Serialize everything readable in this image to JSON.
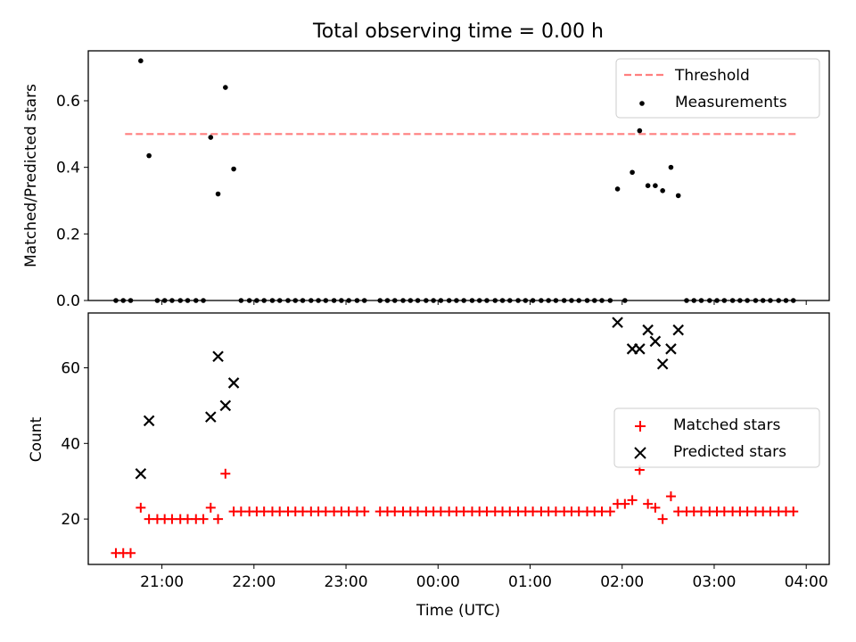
{
  "chart_data": [
    {
      "type": "scatter",
      "title": "Total observing time = 0.00 h",
      "ylabel": "Matched/Predicted stars",
      "xlabel": "",
      "ylim": [
        0,
        0.75
      ],
      "yticks": [
        0.0,
        0.2,
        0.4,
        0.6
      ],
      "ytick_labels": [
        "0.0",
        "0.2",
        "0.4",
        "0.6"
      ],
      "legend_position": "upper right",
      "threshold": {
        "name": "Threshold",
        "value": 0.5,
        "color": "#ff7f7f",
        "style": "dashed",
        "x_range": [
          20.6,
          27.9
        ]
      },
      "series": [
        {
          "name": "Measurements",
          "marker": "dot",
          "color": "#000000",
          "points": [
            [
              20.5,
              0
            ],
            [
              20.58,
              0
            ],
            [
              20.66,
              0
            ],
            [
              20.77,
              0.72
            ],
            [
              20.86,
              0.435
            ],
            [
              20.95,
              0
            ],
            [
              21.03,
              0
            ],
            [
              21.11,
              0
            ],
            [
              21.2,
              0
            ],
            [
              21.28,
              0
            ],
            [
              21.37,
              0
            ],
            [
              21.45,
              0
            ],
            [
              21.53,
              0.49
            ],
            [
              21.61,
              0.32
            ],
            [
              21.69,
              0.64
            ],
            [
              21.78,
              0.395
            ],
            [
              21.86,
              0
            ],
            [
              21.95,
              0
            ],
            [
              22.03,
              0
            ],
            [
              22.11,
              0
            ],
            [
              22.2,
              0
            ],
            [
              22.28,
              0
            ],
            [
              22.37,
              0
            ],
            [
              22.45,
              0
            ],
            [
              22.53,
              0
            ],
            [
              22.62,
              0
            ],
            [
              22.7,
              0
            ],
            [
              22.78,
              0
            ],
            [
              22.87,
              0
            ],
            [
              22.95,
              0
            ],
            [
              23.03,
              0
            ],
            [
              23.12,
              0
            ],
            [
              23.2,
              0
            ],
            [
              23.37,
              0
            ],
            [
              23.45,
              0
            ],
            [
              23.53,
              0
            ],
            [
              23.62,
              0
            ],
            [
              23.7,
              0
            ],
            [
              23.78,
              0
            ],
            [
              23.87,
              0
            ],
            [
              23.95,
              0
            ],
            [
              24.03,
              0
            ],
            [
              24.12,
              0
            ],
            [
              24.2,
              0
            ],
            [
              24.28,
              0
            ],
            [
              24.37,
              0
            ],
            [
              24.45,
              0
            ],
            [
              24.53,
              0
            ],
            [
              24.62,
              0
            ],
            [
              24.7,
              0
            ],
            [
              24.78,
              0
            ],
            [
              24.87,
              0
            ],
            [
              24.95,
              0
            ],
            [
              25.03,
              0
            ],
            [
              25.12,
              0
            ],
            [
              25.2,
              0
            ],
            [
              25.28,
              0
            ],
            [
              25.37,
              0
            ],
            [
              25.45,
              0
            ],
            [
              25.53,
              0
            ],
            [
              25.62,
              0
            ],
            [
              25.7,
              0
            ],
            [
              25.78,
              0
            ],
            [
              25.87,
              0
            ],
            [
              25.95,
              0.335
            ],
            [
              26.03,
              0
            ],
            [
              26.11,
              0.385
            ],
            [
              26.19,
              0.51
            ],
            [
              26.28,
              0.345
            ],
            [
              26.36,
              0.345
            ],
            [
              26.44,
              0.33
            ],
            [
              26.53,
              0.4
            ],
            [
              26.61,
              0.315
            ],
            [
              26.7,
              0
            ],
            [
              26.78,
              0
            ],
            [
              26.86,
              0
            ],
            [
              26.95,
              0
            ],
            [
              27.03,
              0
            ],
            [
              27.11,
              0
            ],
            [
              27.2,
              0
            ],
            [
              27.28,
              0
            ],
            [
              27.36,
              0
            ],
            [
              27.45,
              0
            ],
            [
              27.53,
              0
            ],
            [
              27.61,
              0
            ],
            [
              27.7,
              0
            ],
            [
              27.78,
              0
            ],
            [
              27.86,
              0
            ]
          ]
        }
      ]
    },
    {
      "type": "scatter",
      "title": "",
      "xlabel": "Time (UTC)",
      "ylabel": "Count",
      "xlim": [
        20.2,
        28.25
      ],
      "ylim": [
        8,
        74.5
      ],
      "xticks": [
        21,
        22,
        23,
        24,
        25,
        26,
        27,
        28
      ],
      "xtick_labels": [
        "21:00",
        "22:00",
        "23:00",
        "00:00",
        "01:00",
        "02:00",
        "03:00",
        "04:00"
      ],
      "yticks": [
        20,
        40,
        60
      ],
      "ytick_labels": [
        "20",
        "40",
        "60"
      ],
      "legend_position": "center right",
      "series": [
        {
          "name": "Matched stars",
          "marker": "plus",
          "color": "#ff0000",
          "points": [
            [
              20.5,
              11
            ],
            [
              20.58,
              11
            ],
            [
              20.66,
              11
            ],
            [
              20.77,
              23
            ],
            [
              20.86,
              20
            ],
            [
              20.95,
              20
            ],
            [
              21.03,
              20
            ],
            [
              21.11,
              20
            ],
            [
              21.2,
              20
            ],
            [
              21.28,
              20
            ],
            [
              21.37,
              20
            ],
            [
              21.45,
              20
            ],
            [
              21.53,
              23
            ],
            [
              21.61,
              20
            ],
            [
              21.69,
              32
            ],
            [
              21.78,
              22
            ],
            [
              21.86,
              22
            ],
            [
              21.95,
              22
            ],
            [
              22.03,
              22
            ],
            [
              22.11,
              22
            ],
            [
              22.2,
              22
            ],
            [
              22.28,
              22
            ],
            [
              22.37,
              22
            ],
            [
              22.45,
              22
            ],
            [
              22.53,
              22
            ],
            [
              22.62,
              22
            ],
            [
              22.7,
              22
            ],
            [
              22.78,
              22
            ],
            [
              22.87,
              22
            ],
            [
              22.95,
              22
            ],
            [
              23.03,
              22
            ],
            [
              23.12,
              22
            ],
            [
              23.2,
              22
            ],
            [
              23.37,
              22
            ],
            [
              23.45,
              22
            ],
            [
              23.53,
              22
            ],
            [
              23.62,
              22
            ],
            [
              23.7,
              22
            ],
            [
              23.78,
              22
            ],
            [
              23.87,
              22
            ],
            [
              23.95,
              22
            ],
            [
              24.03,
              22
            ],
            [
              24.12,
              22
            ],
            [
              24.2,
              22
            ],
            [
              24.28,
              22
            ],
            [
              24.37,
              22
            ],
            [
              24.45,
              22
            ],
            [
              24.53,
              22
            ],
            [
              24.62,
              22
            ],
            [
              24.7,
              22
            ],
            [
              24.78,
              22
            ],
            [
              24.87,
              22
            ],
            [
              24.95,
              22
            ],
            [
              25.03,
              22
            ],
            [
              25.12,
              22
            ],
            [
              25.2,
              22
            ],
            [
              25.28,
              22
            ],
            [
              25.37,
              22
            ],
            [
              25.45,
              22
            ],
            [
              25.53,
              22
            ],
            [
              25.62,
              22
            ],
            [
              25.7,
              22
            ],
            [
              25.78,
              22
            ],
            [
              25.87,
              22
            ],
            [
              25.95,
              24
            ],
            [
              26.03,
              24
            ],
            [
              26.11,
              25
            ],
            [
              26.19,
              33
            ],
            [
              26.28,
              24
            ],
            [
              26.36,
              23
            ],
            [
              26.44,
              20
            ],
            [
              26.53,
              26
            ],
            [
              26.61,
              22
            ],
            [
              26.7,
              22
            ],
            [
              26.78,
              22
            ],
            [
              26.86,
              22
            ],
            [
              26.95,
              22
            ],
            [
              27.03,
              22
            ],
            [
              27.11,
              22
            ],
            [
              27.2,
              22
            ],
            [
              27.28,
              22
            ],
            [
              27.36,
              22
            ],
            [
              27.45,
              22
            ],
            [
              27.53,
              22
            ],
            [
              27.61,
              22
            ],
            [
              27.7,
              22
            ],
            [
              27.78,
              22
            ],
            [
              27.86,
              22
            ]
          ]
        },
        {
          "name": "Predicted stars",
          "marker": "x",
          "color": "#000000",
          "points": [
            [
              20.77,
              32
            ],
            [
              20.86,
              46
            ],
            [
              21.53,
              47
            ],
            [
              21.61,
              63
            ],
            [
              21.69,
              50
            ],
            [
              21.78,
              56
            ],
            [
              25.95,
              72
            ],
            [
              26.11,
              65
            ],
            [
              26.19,
              65
            ],
            [
              26.28,
              70
            ],
            [
              26.36,
              67
            ],
            [
              26.44,
              61
            ],
            [
              26.53,
              65
            ],
            [
              26.61,
              70
            ]
          ]
        }
      ]
    }
  ]
}
